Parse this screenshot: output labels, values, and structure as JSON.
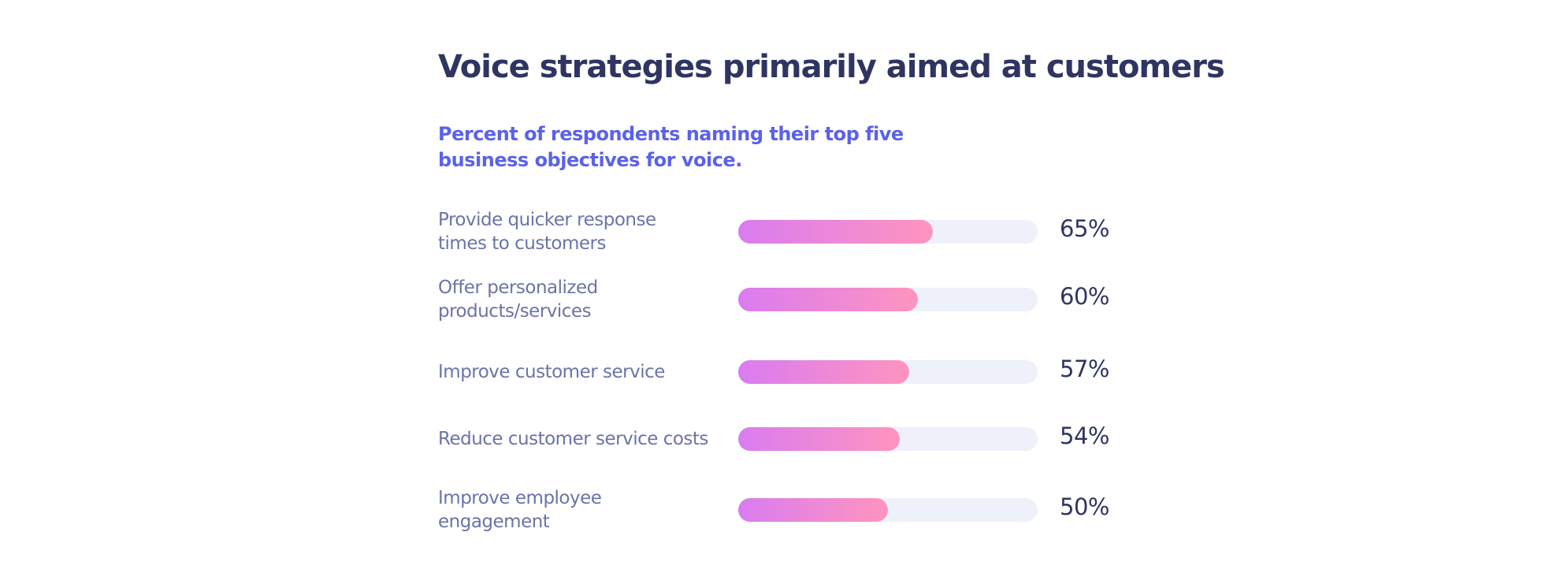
{
  "chart_data": {
    "type": "bar",
    "orientation": "horizontal",
    "title": "Voice strategies primarily aimed at customers",
    "subtitle": "Percent of respondents naming their top five business objectives for voice.",
    "categories": [
      "Provide quicker response\ntimes to customers",
      "Offer personalized\nproducts/services",
      "Improve customer service",
      "Reduce customer service costs",
      "Improve employee\nengagement"
    ],
    "values": [
      65,
      60,
      57,
      54,
      50
    ],
    "value_labels": [
      "65%",
      "60%",
      "57%",
      "54%",
      "50%"
    ],
    "xlim": [
      0,
      100
    ]
  }
}
